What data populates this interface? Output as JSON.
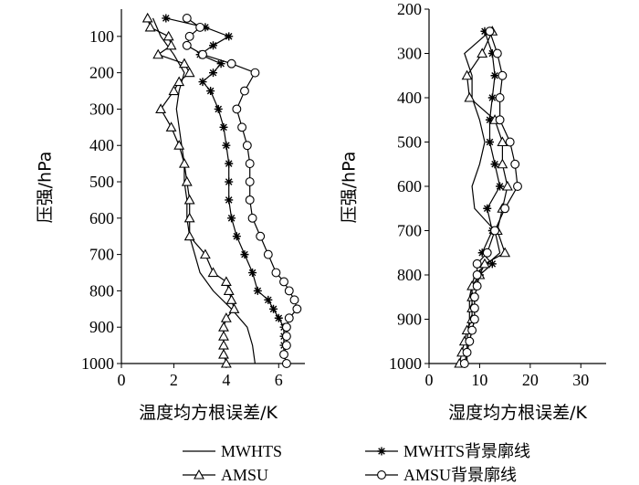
{
  "chart_data": [
    {
      "type": "line",
      "panel": "left",
      "xlabel": "温度均方根误差/K",
      "ylabel": "压强/hPa",
      "xlim": [
        0,
        7
      ],
      "ylim": [
        1000,
        25
      ],
      "y_inverted": true,
      "xticks": [
        0,
        2,
        4,
        6
      ],
      "yticks": [
        100,
        200,
        300,
        400,
        500,
        600,
        700,
        800,
        900,
        1000
      ],
      "grid": false,
      "series": [
        {
          "name": "MWHTS",
          "marker": "none",
          "points": [
            [
              1.2,
              50
            ],
            [
              1.5,
              100
            ],
            [
              2.0,
              150
            ],
            [
              2.4,
              200
            ],
            [
              2.2,
              250
            ],
            [
              2.1,
              300
            ],
            [
              2.2,
              350
            ],
            [
              2.3,
              400
            ],
            [
              2.4,
              450
            ],
            [
              2.4,
              500
            ],
            [
              2.5,
              550
            ],
            [
              2.5,
              600
            ],
            [
              2.6,
              650
            ],
            [
              2.8,
              700
            ],
            [
              3.0,
              750
            ],
            [
              3.5,
              800
            ],
            [
              4.2,
              850
            ],
            [
              4.8,
              900
            ],
            [
              5.0,
              950
            ],
            [
              5.1,
              1000
            ]
          ]
        },
        {
          "name": "MWHTS背景廓线",
          "marker": "star",
          "points": [
            [
              1.7,
              50
            ],
            [
              3.2,
              75
            ],
            [
              4.1,
              100
            ],
            [
              3.5,
              125
            ],
            [
              3.0,
              150
            ],
            [
              3.8,
              175
            ],
            [
              3.5,
              200
            ],
            [
              3.1,
              225
            ],
            [
              3.4,
              250
            ],
            [
              3.7,
              300
            ],
            [
              3.9,
              350
            ],
            [
              4.0,
              400
            ],
            [
              4.1,
              450
            ],
            [
              4.1,
              500
            ],
            [
              4.1,
              550
            ],
            [
              4.2,
              600
            ],
            [
              4.4,
              650
            ],
            [
              4.7,
              700
            ],
            [
              5.0,
              750
            ],
            [
              5.2,
              800
            ],
            [
              5.6,
              825
            ],
            [
              5.8,
              850
            ],
            [
              6.0,
              875
            ],
            [
              6.2,
              900
            ],
            [
              6.2,
              925
            ],
            [
              6.2,
              950
            ],
            [
              6.2,
              975
            ],
            [
              6.3,
              1000
            ]
          ]
        },
        {
          "name": "AMSU",
          "marker": "triangle",
          "points": [
            [
              1.0,
              50
            ],
            [
              1.1,
              75
            ],
            [
              1.8,
              100
            ],
            [
              1.9,
              125
            ],
            [
              1.4,
              150
            ],
            [
              2.4,
              175
            ],
            [
              2.6,
              200
            ],
            [
              2.2,
              225
            ],
            [
              2.0,
              250
            ],
            [
              1.5,
              300
            ],
            [
              1.9,
              350
            ],
            [
              2.2,
              400
            ],
            [
              2.4,
              450
            ],
            [
              2.5,
              500
            ],
            [
              2.6,
              550
            ],
            [
              2.6,
              600
            ],
            [
              2.6,
              650
            ],
            [
              3.2,
              700
            ],
            [
              3.5,
              750
            ],
            [
              4.0,
              775
            ],
            [
              4.1,
              800
            ],
            [
              4.2,
              825
            ],
            [
              4.3,
              850
            ],
            [
              4.0,
              875
            ],
            [
              3.9,
              900
            ],
            [
              3.9,
              925
            ],
            [
              3.9,
              950
            ],
            [
              3.9,
              975
            ],
            [
              4.0,
              1000
            ]
          ]
        },
        {
          "name": "AMSU背景廓线",
          "marker": "circle",
          "points": [
            [
              2.5,
              50
            ],
            [
              3.0,
              75
            ],
            [
              2.6,
              100
            ],
            [
              2.5,
              125
            ],
            [
              3.1,
              150
            ],
            [
              4.2,
              175
            ],
            [
              5.1,
              200
            ],
            [
              4.7,
              250
            ],
            [
              4.4,
              300
            ],
            [
              4.6,
              350
            ],
            [
              4.8,
              400
            ],
            [
              4.9,
              450
            ],
            [
              4.9,
              500
            ],
            [
              4.9,
              550
            ],
            [
              5.0,
              600
            ],
            [
              5.3,
              650
            ],
            [
              5.6,
              700
            ],
            [
              5.9,
              750
            ],
            [
              6.2,
              775
            ],
            [
              6.4,
              800
            ],
            [
              6.6,
              825
            ],
            [
              6.7,
              850
            ],
            [
              6.4,
              875
            ],
            [
              6.3,
              900
            ],
            [
              6.3,
              925
            ],
            [
              6.3,
              950
            ],
            [
              6.2,
              975
            ],
            [
              6.3,
              1000
            ]
          ]
        }
      ]
    },
    {
      "type": "line",
      "panel": "right",
      "xlabel": "湿度均方根误差/K",
      "ylabel": "压强/hPa",
      "xlim": [
        0,
        35
      ],
      "ylim": [
        1000,
        200
      ],
      "y_inverted": true,
      "xticks": [
        0,
        10,
        20,
        30
      ],
      "yticks": [
        200,
        300,
        400,
        500,
        600,
        700,
        800,
        900,
        1000
      ],
      "grid": false,
      "series": [
        {
          "name": "MWHTS",
          "marker": "none",
          "points": [
            [
              12.0,
              250
            ],
            [
              7.0,
              300
            ],
            [
              8.5,
              350
            ],
            [
              8.5,
              400
            ],
            [
              10.0,
              450
            ],
            [
              11.0,
              500
            ],
            [
              10.0,
              550
            ],
            [
              8.5,
              600
            ],
            [
              9.0,
              650
            ],
            [
              13.0,
              700
            ],
            [
              14.0,
              750
            ],
            [
              9.0,
              800
            ],
            [
              8.0,
              850
            ],
            [
              8.0,
              900
            ],
            [
              7.5,
              950
            ],
            [
              7.5,
              1000
            ]
          ]
        },
        {
          "name": "MWHTS背景廓线",
          "marker": "star",
          "points": [
            [
              11.0,
              250
            ],
            [
              12.5,
              300
            ],
            [
              13.0,
              350
            ],
            [
              12.5,
              400
            ],
            [
              12.0,
              450
            ],
            [
              12.0,
              500
            ],
            [
              13.0,
              550
            ],
            [
              14.0,
              600
            ],
            [
              11.5,
              650
            ],
            [
              12.5,
              700
            ],
            [
              10.5,
              750
            ],
            [
              12.5,
              775
            ],
            [
              10.0,
              800
            ],
            [
              9.5,
              825
            ],
            [
              9.0,
              850
            ],
            [
              9.0,
              875
            ],
            [
              9.0,
              900
            ],
            [
              8.5,
              925
            ],
            [
              8.0,
              950
            ],
            [
              7.5,
              975
            ],
            [
              7.0,
              1000
            ]
          ]
        },
        {
          "name": "AMSU",
          "marker": "triangle",
          "points": [
            [
              12.5,
              250
            ],
            [
              10.5,
              300
            ],
            [
              7.5,
              350
            ],
            [
              8.0,
              400
            ],
            [
              13.0,
              450
            ],
            [
              14.5,
              500
            ],
            [
              14.5,
              550
            ],
            [
              15.5,
              600
            ],
            [
              14.5,
              650
            ],
            [
              13.5,
              700
            ],
            [
              15.0,
              750
            ],
            [
              11.0,
              775
            ],
            [
              10.0,
              800
            ],
            [
              8.5,
              825
            ],
            [
              8.5,
              850
            ],
            [
              8.5,
              875
            ],
            [
              8.5,
              900
            ],
            [
              7.5,
              925
            ],
            [
              7.0,
              950
            ],
            [
              6.5,
              975
            ],
            [
              6.0,
              1000
            ]
          ]
        },
        {
          "name": "AMSU背景廓线",
          "marker": "circle",
          "points": [
            [
              12.0,
              250
            ],
            [
              13.5,
              300
            ],
            [
              14.5,
              350
            ],
            [
              14.0,
              400
            ],
            [
              14.0,
              450
            ],
            [
              16.0,
              500
            ],
            [
              17.0,
              550
            ],
            [
              17.5,
              600
            ],
            [
              15.0,
              650
            ],
            [
              13.0,
              700
            ],
            [
              11.5,
              750
            ],
            [
              9.5,
              775
            ],
            [
              9.5,
              800
            ],
            [
              9.5,
              825
            ],
            [
              9.0,
              850
            ],
            [
              9.0,
              875
            ],
            [
              9.0,
              900
            ],
            [
              8.5,
              925
            ],
            [
              8.0,
              950
            ],
            [
              7.5,
              975
            ],
            [
              7.0,
              1000
            ]
          ]
        }
      ]
    }
  ]
}
